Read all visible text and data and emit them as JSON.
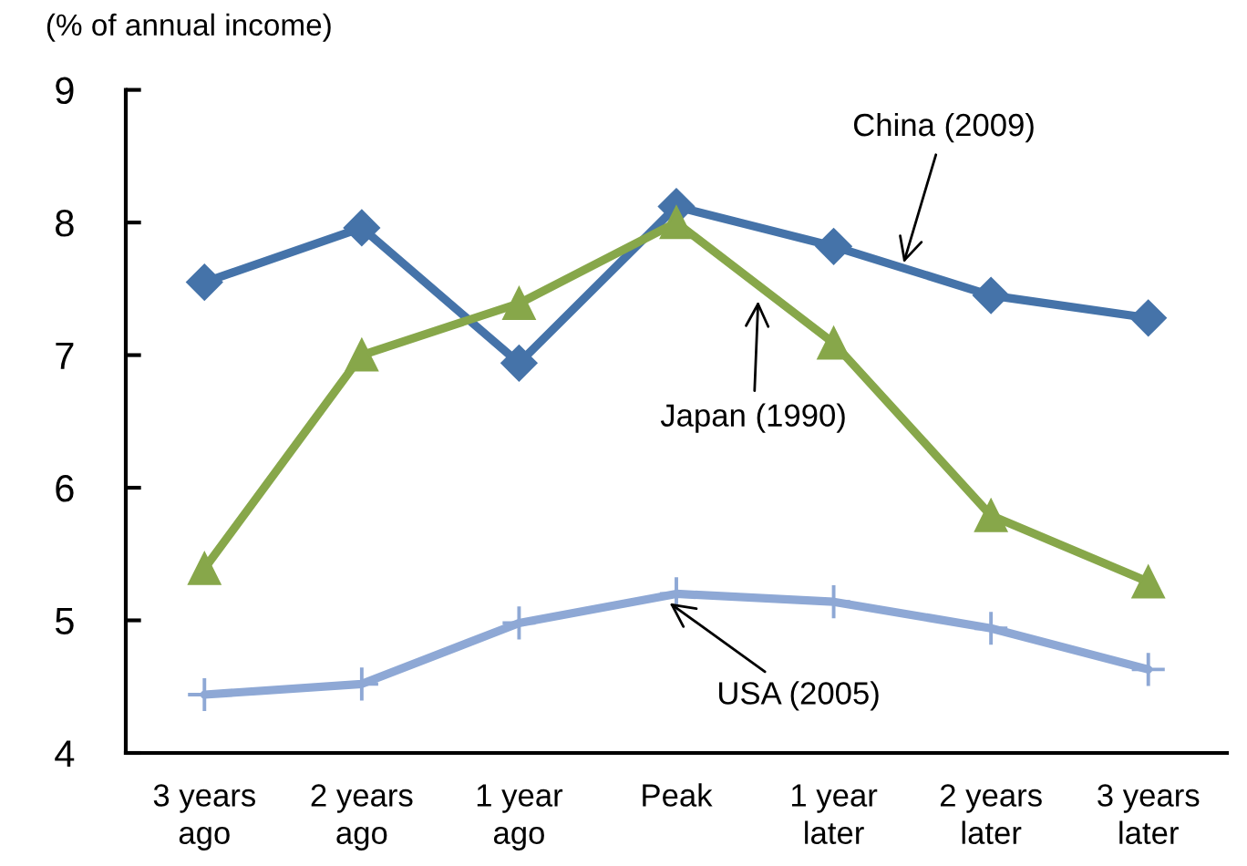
{
  "chart_data": {
    "type": "line",
    "ylabel": "(% of annual income)",
    "categories": [
      "3 years\nago",
      "2 years\nago",
      "1 year\nago",
      "Peak",
      "1 year\nlater",
      "2 years\nlater",
      "3 years\nlater"
    ],
    "ylim": [
      4,
      9
    ],
    "yticks": [
      4,
      5,
      6,
      7,
      8,
      9
    ],
    "grid": false,
    "legend": false,
    "line_style": "solid",
    "series": [
      {
        "name": "China (2009)",
        "color": "#4573a9",
        "marker": "diamond",
        "values": [
          7.55,
          7.96,
          6.94,
          8.12,
          7.82,
          7.45,
          7.28
        ]
      },
      {
        "name": "Japan (1990)",
        "color": "#87a74a",
        "marker": "triangle",
        "values": [
          5.39,
          7.0,
          7.39,
          8.0,
          7.09,
          5.79,
          5.29
        ]
      },
      {
        "name": "USA (2005)",
        "color": "#8ea8d5",
        "marker": "cross",
        "values": [
          4.44,
          4.52,
          4.98,
          5.2,
          5.14,
          4.94,
          4.63
        ]
      }
    ]
  }
}
